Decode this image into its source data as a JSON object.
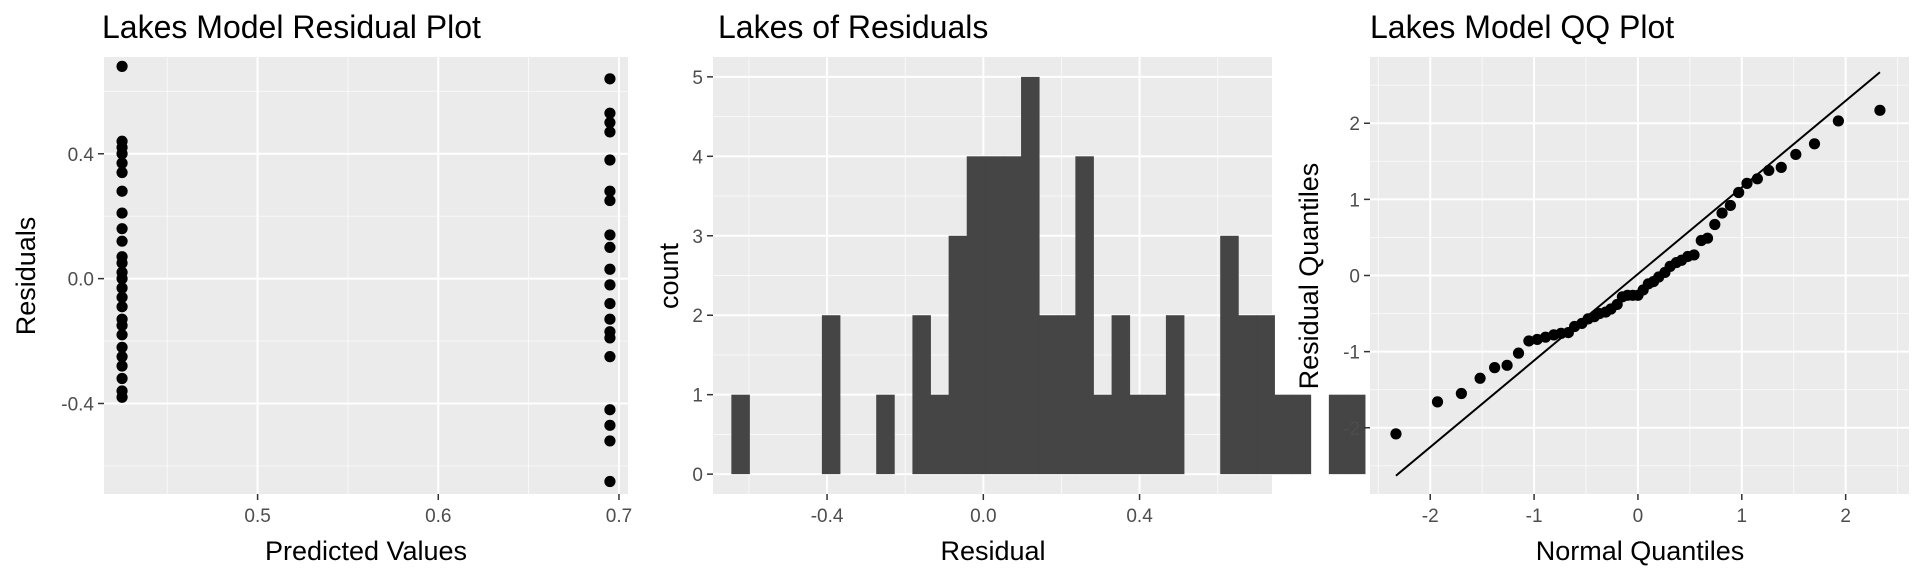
{
  "chart_data": [
    {
      "type": "scatter",
      "title": "Lakes Model Residual Plot",
      "xlabel": "Predicted Values",
      "ylabel": "Residuals",
      "xlim": [
        0.415,
        0.705
      ],
      "ylim": [
        -0.69,
        0.71
      ],
      "x_ticks": [
        0.5,
        0.6,
        0.7
      ],
      "x_tick_labels": [
        "0.5",
        "0.6",
        "0.7"
      ],
      "y_ticks": [
        -0.4,
        0.0,
        0.4
      ],
      "y_tick_labels": [
        "-0.4",
        "0.0",
        "0.4"
      ],
      "grid": true,
      "points": [
        [
          0.425,
          0.68
        ],
        [
          0.425,
          0.44
        ],
        [
          0.425,
          0.42
        ],
        [
          0.425,
          0.4
        ],
        [
          0.425,
          0.37
        ],
        [
          0.425,
          0.34
        ],
        [
          0.425,
          0.28
        ],
        [
          0.425,
          0.21
        ],
        [
          0.425,
          0.16
        ],
        [
          0.425,
          0.12
        ],
        [
          0.425,
          0.07
        ],
        [
          0.425,
          0.05
        ],
        [
          0.425,
          0.02
        ],
        [
          0.425,
          0.0
        ],
        [
          0.425,
          -0.03
        ],
        [
          0.425,
          -0.06
        ],
        [
          0.425,
          -0.09
        ],
        [
          0.425,
          -0.13
        ],
        [
          0.425,
          -0.15
        ],
        [
          0.425,
          -0.18
        ],
        [
          0.425,
          -0.22
        ],
        [
          0.425,
          -0.25
        ],
        [
          0.425,
          -0.28
        ],
        [
          0.425,
          -0.32
        ],
        [
          0.425,
          -0.36
        ],
        [
          0.425,
          -0.38
        ],
        [
          0.695,
          0.64
        ],
        [
          0.695,
          0.53
        ],
        [
          0.695,
          0.5
        ],
        [
          0.695,
          0.47
        ],
        [
          0.695,
          0.38
        ],
        [
          0.695,
          0.28
        ],
        [
          0.695,
          0.25
        ],
        [
          0.695,
          0.14
        ],
        [
          0.695,
          0.1
        ],
        [
          0.695,
          0.03
        ],
        [
          0.695,
          -0.02
        ],
        [
          0.695,
          -0.08
        ],
        [
          0.695,
          -0.13
        ],
        [
          0.695,
          -0.17
        ],
        [
          0.695,
          -0.19
        ],
        [
          0.695,
          -0.25
        ],
        [
          0.695,
          -0.42
        ],
        [
          0.695,
          -0.47
        ],
        [
          0.695,
          -0.52
        ],
        [
          0.695,
          -0.65
        ]
      ]
    },
    {
      "type": "bar",
      "title": "Lakes of Residuals",
      "xlabel": "Residual",
      "ylabel": "count",
      "xlim": [
        -0.692,
        0.739
      ],
      "ylim": [
        -0.25,
        5.25
      ],
      "x_ticks": [
        -0.4,
        0.0,
        0.4
      ],
      "x_tick_labels": [
        "-0.4",
        "0.0",
        "0.4"
      ],
      "y_ticks": [
        0,
        1,
        2,
        3,
        4,
        5
      ],
      "y_tick_labels": [
        "0",
        "1",
        "2",
        "3",
        "4",
        "5"
      ],
      "grid": true,
      "bin_start": -0.645,
      "bin_width": 0.04635,
      "counts": [
        1,
        0,
        0,
        0,
        0,
        2,
        0,
        0,
        1,
        0,
        2,
        1,
        3,
        4,
        4,
        4,
        5,
        2,
        2,
        4,
        1,
        2,
        1,
        1,
        2,
        0,
        0,
        3,
        2,
        2,
        1,
        1,
        0,
        1,
        1
      ],
      "bar_color": "#454545"
    },
    {
      "type": "scatter",
      "title": "Lakes Model QQ Plot",
      "xlabel": "Normal Quantiles",
      "ylabel": "Residual Quantiles",
      "xlim": [
        -2.58,
        2.61
      ],
      "ylim": [
        -2.87,
        2.87
      ],
      "x_ticks": [
        -2,
        -1,
        0,
        1,
        2
      ],
      "x_tick_labels": [
        "-2",
        "-1",
        "0",
        "1",
        "2"
      ],
      "y_ticks": [
        -2,
        -1,
        0,
        1,
        2
      ],
      "y_tick_labels": [
        "-2",
        "-1",
        "0",
        "1",
        "2"
      ],
      "grid": true,
      "reference_line": [
        [
          -2.33,
          -2.63
        ],
        [
          2.33,
          2.67
        ]
      ],
      "points": [
        [
          -2.33,
          -2.08
        ],
        [
          -1.93,
          -1.66
        ],
        [
          -1.7,
          -1.55
        ],
        [
          -1.52,
          -1.35
        ],
        [
          -1.38,
          -1.21
        ],
        [
          -1.26,
          -1.18
        ],
        [
          -1.15,
          -1.02
        ],
        [
          -1.05,
          -0.86
        ],
        [
          -0.97,
          -0.84
        ],
        [
          -0.89,
          -0.81
        ],
        [
          -0.81,
          -0.78
        ],
        [
          -0.74,
          -0.76
        ],
        [
          -0.67,
          -0.75
        ],
        [
          -0.61,
          -0.67
        ],
        [
          -0.54,
          -0.63
        ],
        [
          -0.48,
          -0.57
        ],
        [
          -0.42,
          -0.54
        ],
        [
          -0.37,
          -0.5
        ],
        [
          -0.31,
          -0.48
        ],
        [
          -0.26,
          -0.44
        ],
        [
          -0.2,
          -0.38
        ],
        [
          -0.15,
          -0.28
        ],
        [
          -0.1,
          -0.26
        ],
        [
          -0.05,
          -0.26
        ],
        [
          0.0,
          -0.26
        ],
        [
          0.05,
          -0.19
        ],
        [
          0.1,
          -0.11
        ],
        [
          0.15,
          -0.08
        ],
        [
          0.2,
          -0.02
        ],
        [
          0.26,
          0.04
        ],
        [
          0.31,
          0.12
        ],
        [
          0.37,
          0.17
        ],
        [
          0.42,
          0.2
        ],
        [
          0.48,
          0.25
        ],
        [
          0.54,
          0.27
        ],
        [
          0.61,
          0.46
        ],
        [
          0.67,
          0.49
        ],
        [
          0.74,
          0.67
        ],
        [
          0.81,
          0.82
        ],
        [
          0.89,
          0.92
        ],
        [
          0.97,
          1.09
        ],
        [
          1.05,
          1.21
        ],
        [
          1.15,
          1.27
        ],
        [
          1.26,
          1.38
        ],
        [
          1.38,
          1.42
        ],
        [
          1.52,
          1.59
        ],
        [
          1.7,
          1.73
        ],
        [
          1.93,
          2.03
        ],
        [
          2.33,
          2.17
        ]
      ]
    }
  ]
}
